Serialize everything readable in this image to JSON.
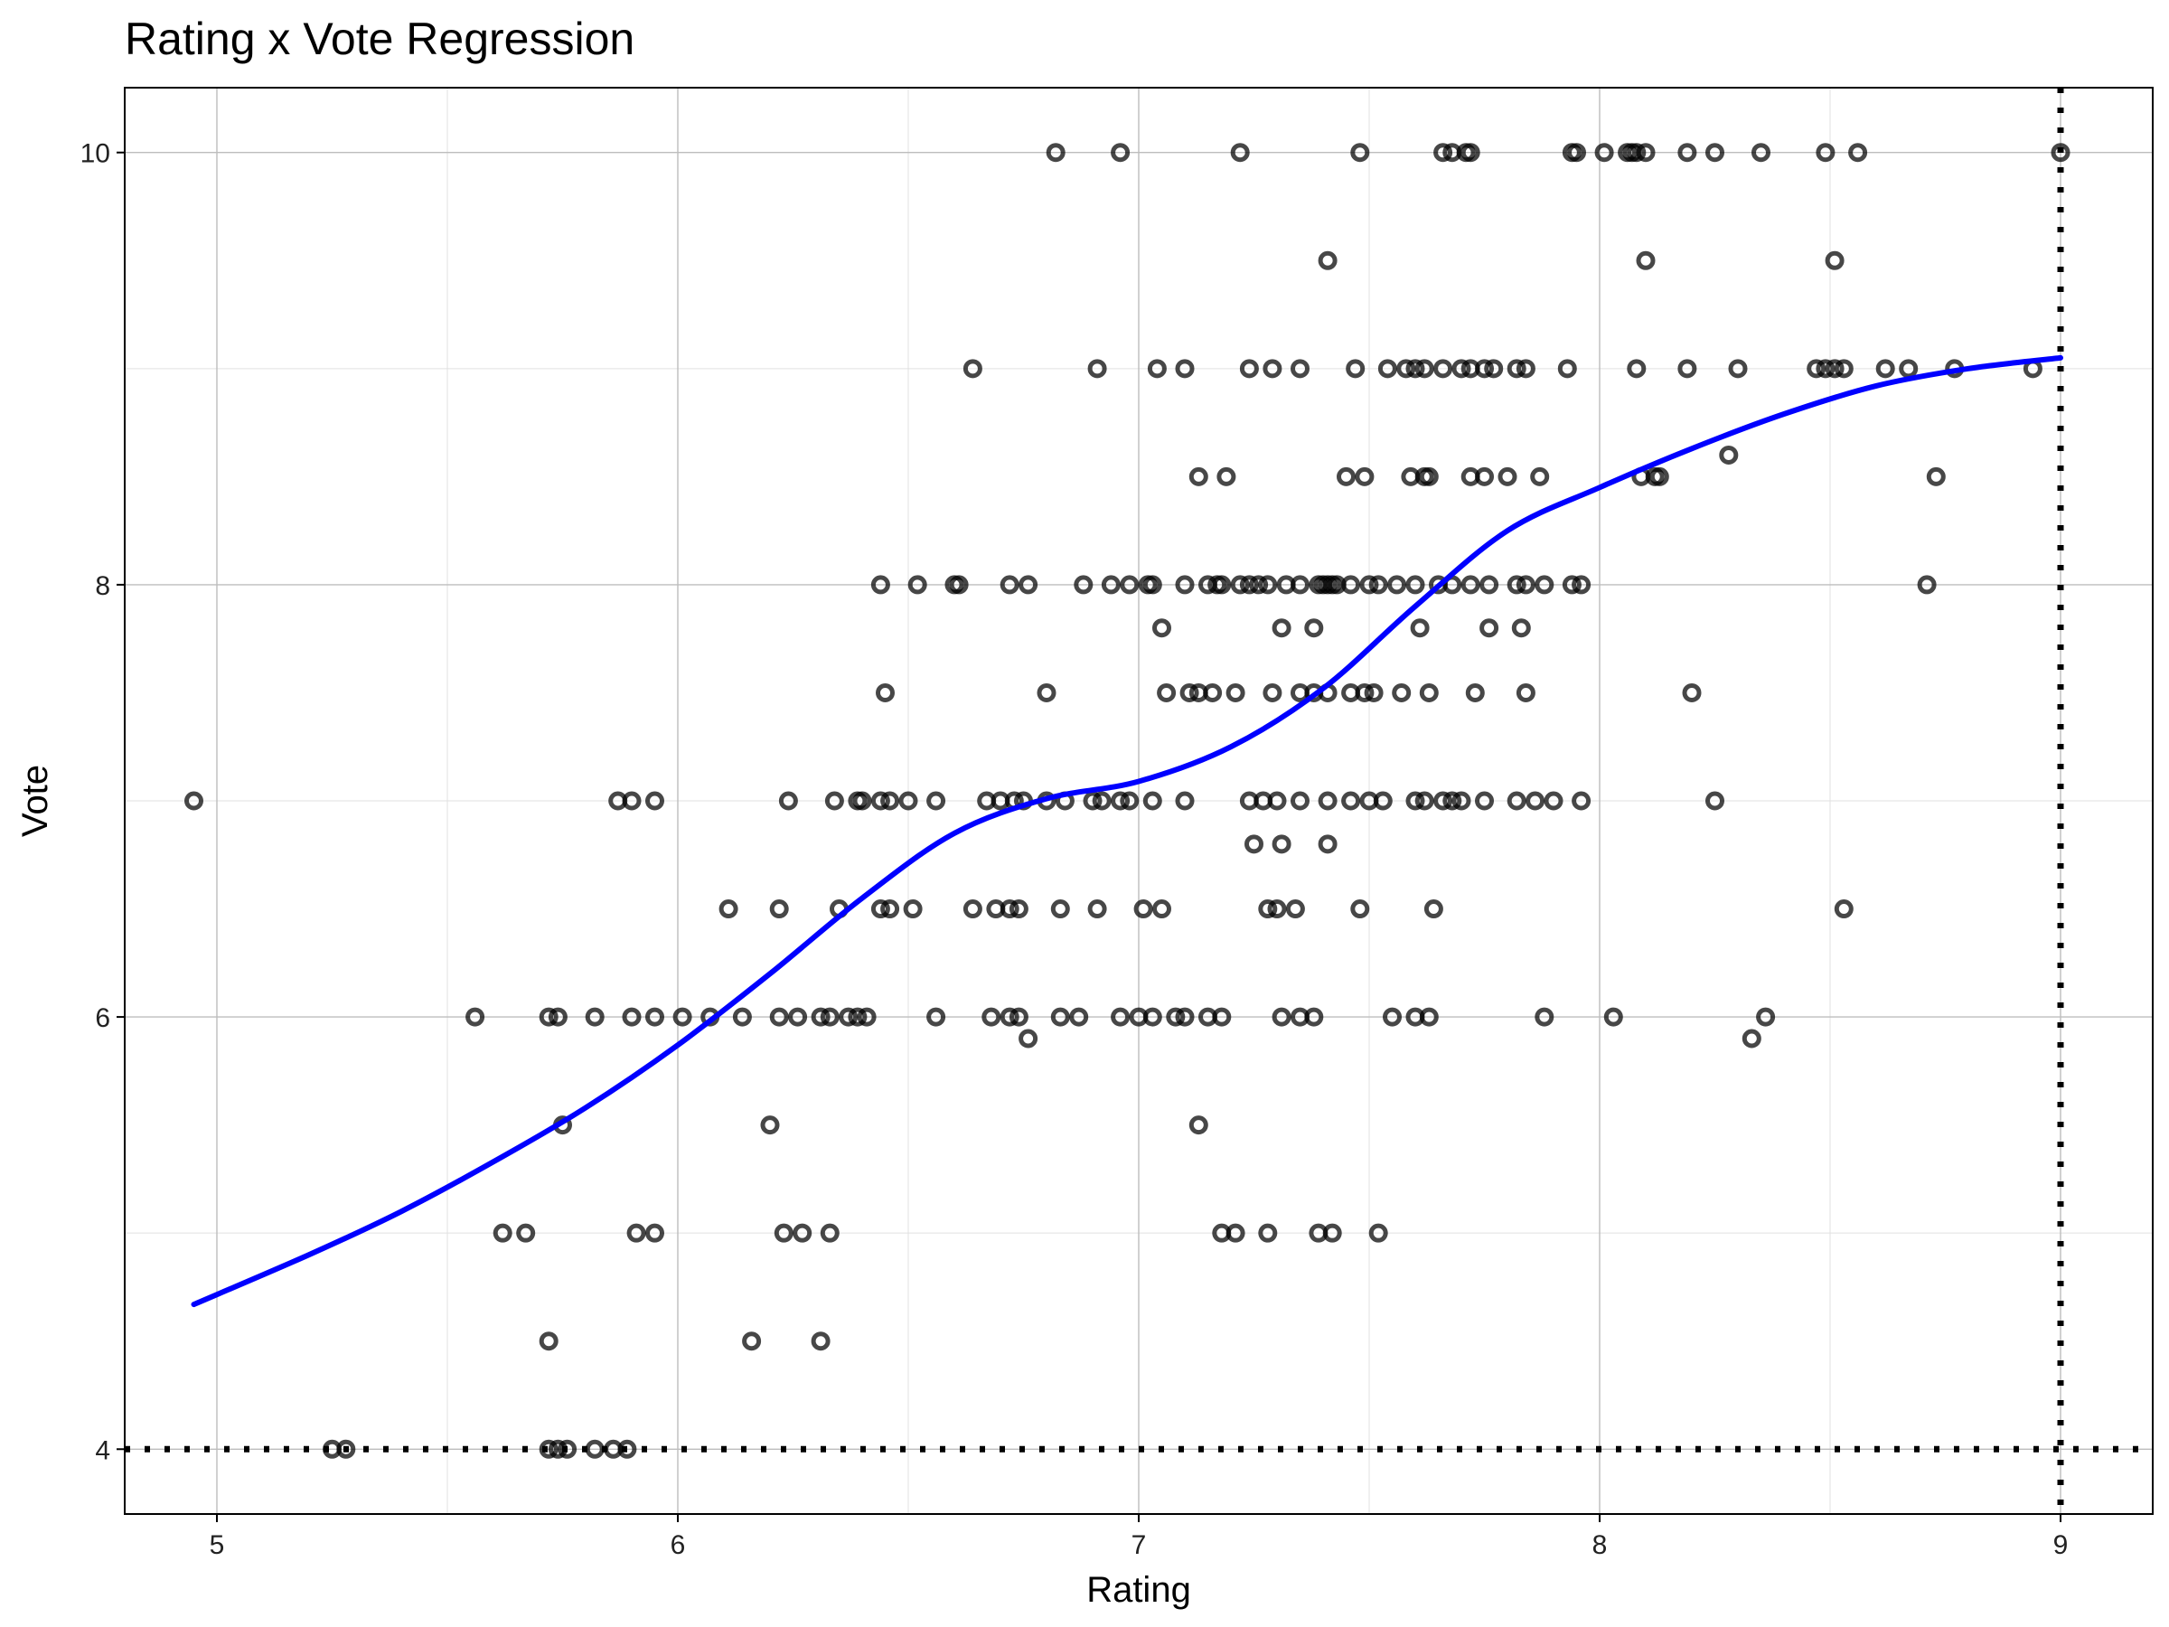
{
  "chart_data": {
    "type": "scatter",
    "title": "Rating x Vote Regression",
    "xlabel": "Rating",
    "ylabel": "Vote",
    "xlim": [
      4.8,
      9.2
    ],
    "ylim": [
      3.7,
      10.3
    ],
    "x_ticks": [
      5,
      6,
      7,
      8,
      9
    ],
    "y_ticks": [
      4,
      6,
      8,
      10
    ],
    "grid": true,
    "legend": "none",
    "colors": {
      "points": "#333333",
      "fit": "#0000ff",
      "reference": "#000000"
    },
    "reference_lines": {
      "vertical_x": 9,
      "horizontal_y": 4
    },
    "points": [
      [
        6.82,
        10
      ],
      [
        6.96,
        10
      ],
      [
        7.22,
        10
      ],
      [
        7.48,
        10
      ],
      [
        7.66,
        10
      ],
      [
        7.68,
        10
      ],
      [
        7.71,
        10
      ],
      [
        7.72,
        10
      ],
      [
        7.94,
        10
      ],
      [
        7.95,
        10
      ],
      [
        8.01,
        10
      ],
      [
        8.06,
        10
      ],
      [
        8.07,
        10
      ],
      [
        8.08,
        10
      ],
      [
        8.1,
        10
      ],
      [
        8.19,
        10
      ],
      [
        8.25,
        10
      ],
      [
        8.35,
        10
      ],
      [
        8.49,
        10
      ],
      [
        8.56,
        10
      ],
      [
        9.0,
        10
      ],
      [
        7.41,
        9.5
      ],
      [
        8.1,
        9.5
      ],
      [
        8.51,
        9.5
      ],
      [
        6.64,
        9
      ],
      [
        6.91,
        9
      ],
      [
        7.04,
        9
      ],
      [
        7.1,
        9
      ],
      [
        7.24,
        9
      ],
      [
        7.29,
        9
      ],
      [
        7.35,
        9
      ],
      [
        7.47,
        9
      ],
      [
        7.54,
        9
      ],
      [
        7.58,
        9
      ],
      [
        7.6,
        9
      ],
      [
        7.62,
        9
      ],
      [
        7.66,
        9
      ],
      [
        7.7,
        9
      ],
      [
        7.72,
        9
      ],
      [
        7.75,
        9
      ],
      [
        7.77,
        9
      ],
      [
        7.82,
        9
      ],
      [
        7.84,
        9
      ],
      [
        7.93,
        9
      ],
      [
        8.08,
        9
      ],
      [
        8.19,
        9
      ],
      [
        8.3,
        9
      ],
      [
        8.47,
        9
      ],
      [
        8.49,
        9
      ],
      [
        8.51,
        9
      ],
      [
        8.53,
        9
      ],
      [
        8.62,
        9
      ],
      [
        8.67,
        9
      ],
      [
        8.77,
        9
      ],
      [
        8.94,
        9
      ],
      [
        7.13,
        8.5
      ],
      [
        7.19,
        8.5
      ],
      [
        7.45,
        8.5
      ],
      [
        7.49,
        8.5
      ],
      [
        7.59,
        8.5
      ],
      [
        7.62,
        8.5
      ],
      [
        7.63,
        8.5
      ],
      [
        7.72,
        8.5
      ],
      [
        7.75,
        8.5
      ],
      [
        7.8,
        8.5
      ],
      [
        7.87,
        8.5
      ],
      [
        8.09,
        8.5
      ],
      [
        8.12,
        8.5
      ],
      [
        8.13,
        8.5
      ],
      [
        8.28,
        8.6
      ],
      [
        8.73,
        8.5
      ],
      [
        6.44,
        8
      ],
      [
        6.52,
        8
      ],
      [
        6.6,
        8
      ],
      [
        6.61,
        8
      ],
      [
        6.72,
        8
      ],
      [
        6.76,
        8
      ],
      [
        6.88,
        8
      ],
      [
        6.94,
        8
      ],
      [
        6.98,
        8
      ],
      [
        7.02,
        8
      ],
      [
        7.03,
        8
      ],
      [
        7.1,
        8
      ],
      [
        7.15,
        8
      ],
      [
        7.17,
        8
      ],
      [
        7.18,
        8
      ],
      [
        7.22,
        8
      ],
      [
        7.24,
        8
      ],
      [
        7.26,
        8
      ],
      [
        7.28,
        8
      ],
      [
        7.32,
        8
      ],
      [
        7.35,
        8
      ],
      [
        7.39,
        8
      ],
      [
        7.4,
        8
      ],
      [
        7.41,
        8
      ],
      [
        7.42,
        8
      ],
      [
        7.43,
        8
      ],
      [
        7.46,
        8
      ],
      [
        7.5,
        8
      ],
      [
        7.52,
        8
      ],
      [
        7.56,
        8
      ],
      [
        7.6,
        8
      ],
      [
        7.65,
        8
      ],
      [
        7.68,
        8
      ],
      [
        7.72,
        8
      ],
      [
        7.76,
        8
      ],
      [
        7.82,
        8
      ],
      [
        7.84,
        8
      ],
      [
        7.88,
        8
      ],
      [
        7.94,
        8
      ],
      [
        7.96,
        8
      ],
      [
        8.71,
        8
      ],
      [
        7.05,
        7.8
      ],
      [
        7.31,
        7.8
      ],
      [
        7.38,
        7.8
      ],
      [
        7.61,
        7.8
      ],
      [
        7.76,
        7.8
      ],
      [
        7.83,
        7.8
      ],
      [
        6.45,
        7.5
      ],
      [
        6.8,
        7.5
      ],
      [
        7.06,
        7.5
      ],
      [
        7.11,
        7.5
      ],
      [
        7.13,
        7.5
      ],
      [
        7.16,
        7.5
      ],
      [
        7.21,
        7.5
      ],
      [
        7.29,
        7.5
      ],
      [
        7.35,
        7.5
      ],
      [
        7.38,
        7.5
      ],
      [
        7.41,
        7.5
      ],
      [
        7.46,
        7.5
      ],
      [
        7.49,
        7.5
      ],
      [
        7.51,
        7.5
      ],
      [
        7.57,
        7.5
      ],
      [
        7.63,
        7.5
      ],
      [
        7.73,
        7.5
      ],
      [
        7.84,
        7.5
      ],
      [
        8.2,
        7.5
      ],
      [
        4.95,
        7
      ],
      [
        5.87,
        7
      ],
      [
        5.9,
        7
      ],
      [
        5.95,
        7
      ],
      [
        6.24,
        7
      ],
      [
        6.34,
        7
      ],
      [
        6.39,
        7
      ],
      [
        6.4,
        7
      ],
      [
        6.44,
        7
      ],
      [
        6.46,
        7
      ],
      [
        6.5,
        7
      ],
      [
        6.56,
        7
      ],
      [
        6.67,
        7
      ],
      [
        6.7,
        7
      ],
      [
        6.73,
        7
      ],
      [
        6.75,
        7
      ],
      [
        6.8,
        7
      ],
      [
        6.84,
        7
      ],
      [
        6.9,
        7
      ],
      [
        6.92,
        7
      ],
      [
        6.96,
        7
      ],
      [
        6.98,
        7
      ],
      [
        7.03,
        7
      ],
      [
        7.1,
        7
      ],
      [
        7.24,
        7
      ],
      [
        7.27,
        7
      ],
      [
        7.3,
        7
      ],
      [
        7.35,
        7
      ],
      [
        7.41,
        7
      ],
      [
        7.46,
        7
      ],
      [
        7.5,
        7
      ],
      [
        7.53,
        7
      ],
      [
        7.6,
        7
      ],
      [
        7.62,
        7
      ],
      [
        7.66,
        7
      ],
      [
        7.68,
        7
      ],
      [
        7.7,
        7
      ],
      [
        7.75,
        7
      ],
      [
        7.82,
        7
      ],
      [
        7.86,
        7
      ],
      [
        7.9,
        7
      ],
      [
        7.96,
        7
      ],
      [
        8.25,
        7
      ],
      [
        7.25,
        6.8
      ],
      [
        7.31,
        6.8
      ],
      [
        7.41,
        6.8
      ],
      [
        6.11,
        6.5
      ],
      [
        6.22,
        6.5
      ],
      [
        6.35,
        6.5
      ],
      [
        6.44,
        6.5
      ],
      [
        6.46,
        6.5
      ],
      [
        6.51,
        6.5
      ],
      [
        6.64,
        6.5
      ],
      [
        6.69,
        6.5
      ],
      [
        6.72,
        6.5
      ],
      [
        6.74,
        6.5
      ],
      [
        6.83,
        6.5
      ],
      [
        6.91,
        6.5
      ],
      [
        7.01,
        6.5
      ],
      [
        7.05,
        6.5
      ],
      [
        7.28,
        6.5
      ],
      [
        7.3,
        6.5
      ],
      [
        7.34,
        6.5
      ],
      [
        7.48,
        6.5
      ],
      [
        7.64,
        6.5
      ],
      [
        8.53,
        6.5
      ],
      [
        5.56,
        6
      ],
      [
        5.72,
        6
      ],
      [
        5.74,
        6
      ],
      [
        5.82,
        6
      ],
      [
        5.9,
        6
      ],
      [
        5.95,
        6
      ],
      [
        6.01,
        6
      ],
      [
        6.07,
        6
      ],
      [
        6.14,
        6
      ],
      [
        6.22,
        6
      ],
      [
        6.26,
        6
      ],
      [
        6.31,
        6
      ],
      [
        6.33,
        6
      ],
      [
        6.37,
        6
      ],
      [
        6.39,
        6
      ],
      [
        6.41,
        6
      ],
      [
        6.56,
        6
      ],
      [
        6.68,
        6
      ],
      [
        6.72,
        6
      ],
      [
        6.74,
        6
      ],
      [
        6.83,
        6
      ],
      [
        6.87,
        6
      ],
      [
        6.96,
        6
      ],
      [
        7.0,
        6
      ],
      [
        7.03,
        6
      ],
      [
        7.08,
        6
      ],
      [
        7.1,
        6
      ],
      [
        7.15,
        6
      ],
      [
        7.18,
        6
      ],
      [
        7.31,
        6
      ],
      [
        7.35,
        6
      ],
      [
        7.38,
        6
      ],
      [
        7.55,
        6
      ],
      [
        7.6,
        6
      ],
      [
        7.63,
        6
      ],
      [
        7.88,
        6
      ],
      [
        8.03,
        6
      ],
      [
        8.36,
        6
      ],
      [
        6.76,
        5.9
      ],
      [
        8.33,
        5.9
      ],
      [
        5.75,
        5.5
      ],
      [
        6.2,
        5.5
      ],
      [
        7.13,
        5.5
      ],
      [
        5.62,
        5
      ],
      [
        5.67,
        5
      ],
      [
        5.91,
        5
      ],
      [
        5.95,
        5
      ],
      [
        6.23,
        5
      ],
      [
        6.27,
        5
      ],
      [
        6.33,
        5
      ],
      [
        7.18,
        5
      ],
      [
        7.21,
        5
      ],
      [
        7.28,
        5
      ],
      [
        7.39,
        5
      ],
      [
        7.42,
        5
      ],
      [
        7.52,
        5
      ],
      [
        5.72,
        4.5
      ],
      [
        6.16,
        4.5
      ],
      [
        6.31,
        4.5
      ],
      [
        5.25,
        4
      ],
      [
        5.28,
        4
      ],
      [
        5.72,
        4
      ],
      [
        5.74,
        4
      ],
      [
        5.76,
        4
      ],
      [
        5.82,
        4
      ],
      [
        5.86,
        4
      ],
      [
        5.89,
        4
      ]
    ],
    "fit_curve": {
      "x": [
        4.95,
        5.2,
        5.4,
        5.6,
        5.8,
        6.0,
        6.2,
        6.4,
        6.6,
        6.8,
        7.0,
        7.2,
        7.4,
        7.6,
        7.8,
        8.0,
        8.2,
        8.4,
        8.6,
        8.8,
        9.0
      ],
      "y": [
        4.67,
        4.9,
        5.1,
        5.33,
        5.58,
        5.87,
        6.2,
        6.55,
        6.85,
        7.01,
        7.09,
        7.25,
        7.52,
        7.9,
        8.25,
        8.45,
        8.63,
        8.79,
        8.92,
        9.0,
        9.05
      ]
    }
  }
}
